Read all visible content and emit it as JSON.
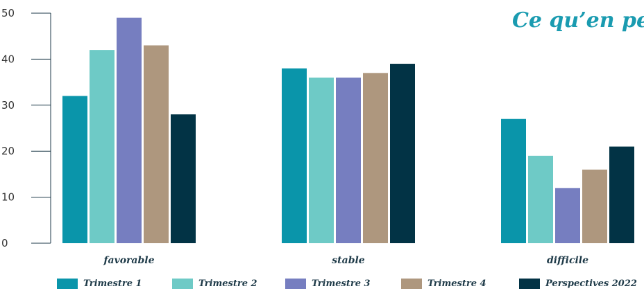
{
  "title": "Ce qu’en pe",
  "chart_data": {
    "type": "bar",
    "categories": [
      "favorable",
      "stable",
      "difficile"
    ],
    "series": [
      {
        "name": "Trimestre 1",
        "values": [
          32,
          38,
          27
        ],
        "color": "#0a95aa"
      },
      {
        "name": "Trimestre 2",
        "values": [
          42,
          36,
          19
        ],
        "color": "#6ecac6"
      },
      {
        "name": "Trimestre 3",
        "values": [
          49,
          36,
          12
        ],
        "color": "#767ec0"
      },
      {
        "name": "Trimestre 4",
        "values": [
          43,
          37,
          16
        ],
        "color": "#ae977e"
      },
      {
        "name": "Perspectives 2022",
        "values": [
          28,
          39,
          21
        ],
        "color": "#023345"
      }
    ],
    "ylim": [
      0,
      50
    ],
    "yticks": [
      "0",
      "10",
      "20",
      "30",
      "40",
      "50"
    ],
    "grid": false,
    "legend_position": "bottom"
  }
}
